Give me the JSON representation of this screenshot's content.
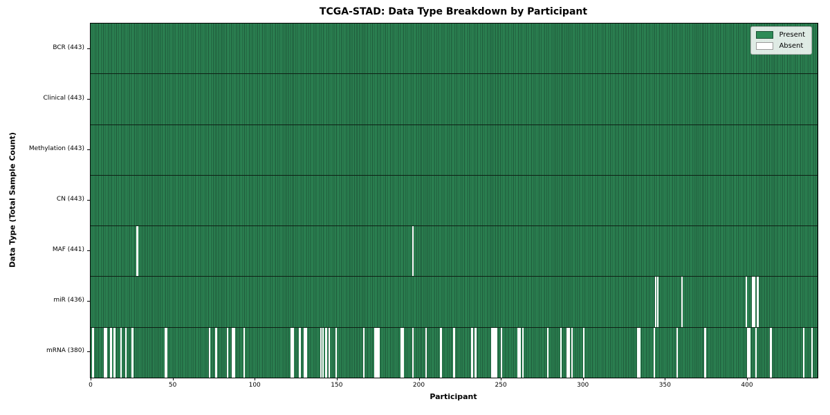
{
  "chart_data": {
    "type": "heatmap",
    "title": "TCGA-STAD: Data Type Breakdown by Participant",
    "xlabel": "Participant",
    "ylabel": "Data Type (Total Sample Count)",
    "n_participants": 443,
    "x_ticks": [
      0,
      50,
      100,
      150,
      200,
      250,
      300,
      350,
      400
    ],
    "legend_position": "upper right",
    "legend": [
      {
        "label": "Present",
        "color": "#2e8b57"
      },
      {
        "label": "Absent",
        "color": "#ffffff"
      }
    ],
    "rows": [
      {
        "data_type": "BCR",
        "label": "BCR (443)",
        "total": 443,
        "absent_participants": []
      },
      {
        "data_type": "Clinical",
        "label": "Clinical (443)",
        "total": 443,
        "absent_participants": []
      },
      {
        "data_type": "Methylation",
        "label": "Methylation (443)",
        "total": 443,
        "absent_participants": []
      },
      {
        "data_type": "CN",
        "label": "CN (443)",
        "total": 443,
        "absent_participants": []
      },
      {
        "data_type": "MAF",
        "label": "MAF (441)",
        "total": 441,
        "absent_participants": [
          28,
          196
        ]
      },
      {
        "data_type": "miR",
        "label": "miR (436)",
        "total": 436,
        "absent_participants": [
          344,
          345,
          360,
          399,
          403,
          404,
          406
        ]
      },
      {
        "data_type": "mRNA",
        "label": "mRNA (380)",
        "total": 380,
        "absent_participants": [
          1,
          8,
          9,
          12,
          14,
          18,
          21,
          25,
          45,
          46,
          72,
          76,
          83,
          86,
          87,
          93,
          122,
          123,
          127,
          130,
          131,
          140,
          141,
          143,
          145,
          149,
          166,
          173,
          174,
          175,
          189,
          190,
          196,
          204,
          213,
          221,
          232,
          234,
          244,
          245,
          246,
          247,
          250,
          260,
          261,
          263,
          278,
          286,
          290,
          291,
          293,
          300,
          333,
          334,
          343,
          357,
          374,
          400,
          401,
          405,
          414,
          434,
          439
        ]
      }
    ],
    "colors": {
      "present": "#2e8b57",
      "present_edge": "#1c5236",
      "absent": "#ffffff",
      "row_divider": "#0d1f14",
      "axis": "#000000",
      "legend_bg": "rgba(255,255,255,0.85)",
      "legend_border": "#b0b0b0",
      "absent_swatch_border": "#999999"
    }
  }
}
